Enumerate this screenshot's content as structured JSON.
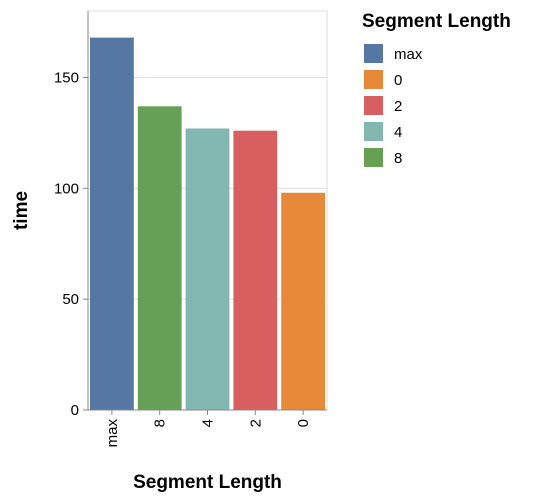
{
  "chart_data": {
    "type": "bar",
    "categories": [
      "max",
      "8",
      "4",
      "2",
      "0"
    ],
    "values": [
      168,
      137,
      127,
      126,
      98
    ],
    "xlabel": "Segment Length",
    "ylabel": "time",
    "ylim": [
      0,
      180
    ],
    "yticks": [
      0,
      50,
      100,
      150
    ],
    "grid": true,
    "legend": {
      "title": "Segment Length",
      "placement": "right",
      "items": [
        {
          "label": "max",
          "color": "#5677a4"
        },
        {
          "label": "0",
          "color": "#e8893a"
        },
        {
          "label": "2",
          "color": "#d75f5f"
        },
        {
          "label": "4",
          "color": "#83b8b2"
        },
        {
          "label": "8",
          "color": "#66a055"
        }
      ]
    },
    "colors": {
      "max": "#5677a4",
      "0": "#e8893a",
      "2": "#d75f5f",
      "4": "#83b8b2",
      "8": "#66a055"
    }
  }
}
